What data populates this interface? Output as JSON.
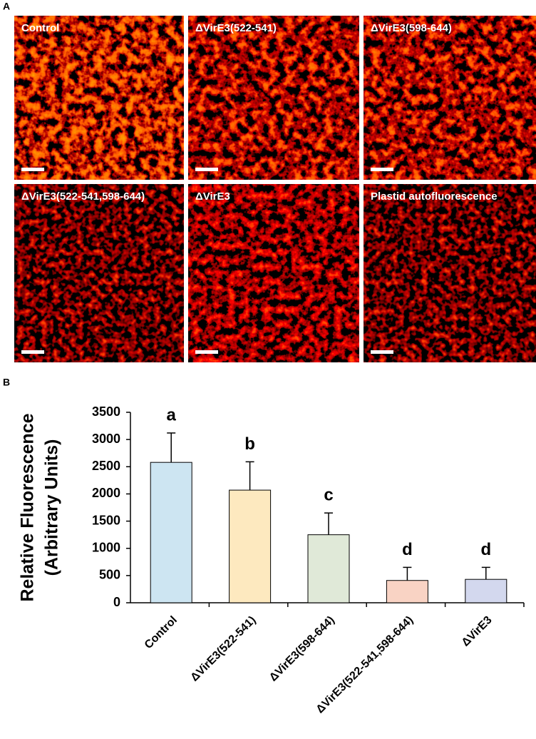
{
  "panel_a": {
    "label": "A",
    "images": [
      {
        "label": "Control"
      },
      {
        "label": "ΔVirE3(522-541)"
      },
      {
        "label": "ΔVirE3(598-644)"
      },
      {
        "label": "ΔVirE3(522-541,598-644)"
      },
      {
        "label": "ΔVirE3"
      },
      {
        "label": "Plastid autofluorescence"
      }
    ]
  },
  "panel_b_label": "B",
  "chart_data": {
    "type": "bar",
    "ylabel": [
      "Relative Fluorescence",
      "(Arbitrary Units)"
    ],
    "categories": [
      "Control",
      "ΔVirE3(522-541)",
      "ΔVirE3(598-644)",
      "ΔVirE3(522-541,598-644)",
      "ΔVirE3"
    ],
    "values": [
      2580,
      2070,
      1250,
      410,
      430
    ],
    "errors": [
      540,
      520,
      400,
      240,
      220
    ],
    "significance_letters": [
      "a",
      "b",
      "c",
      "d",
      "d"
    ],
    "colors": [
      "#cde5f2",
      "#fde9bf",
      "#e0e9d8",
      "#f9d3c4",
      "#d3d8ee"
    ],
    "ylim": [
      0,
      3500
    ],
    "yticks": [
      0,
      500,
      1000,
      1500,
      2000,
      2500,
      3000,
      3500
    ]
  }
}
